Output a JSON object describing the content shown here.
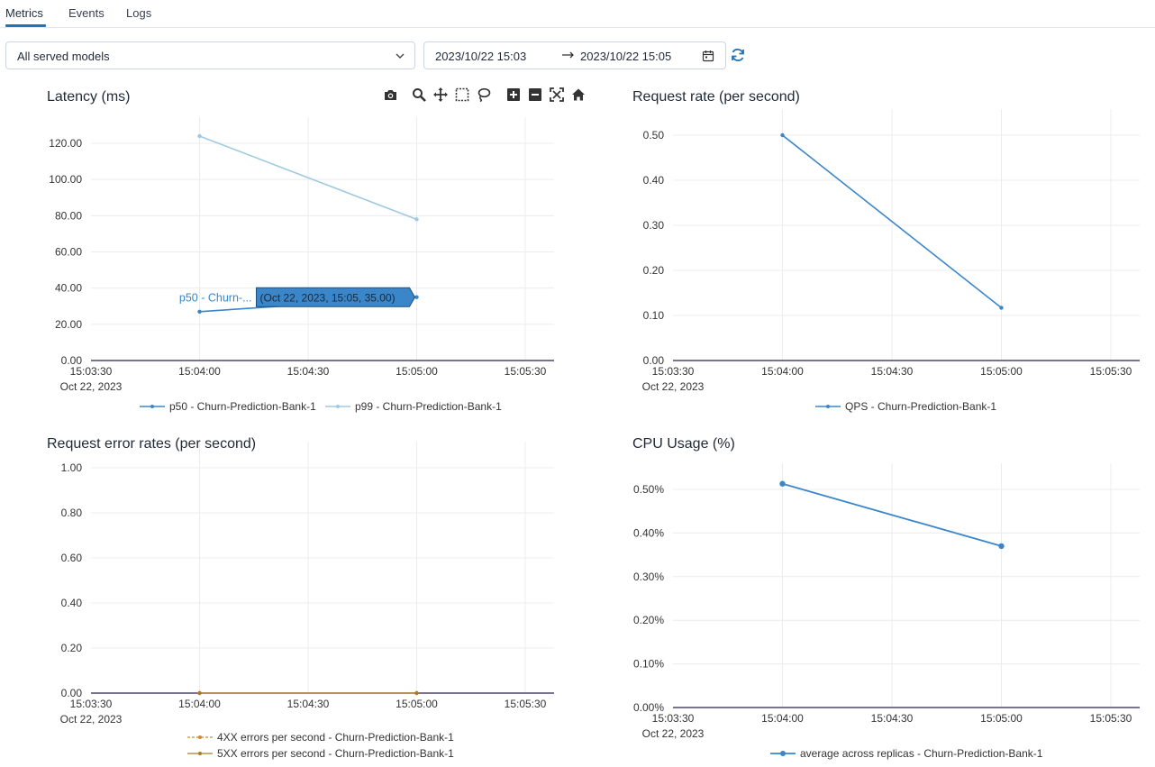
{
  "tabs": [
    {
      "label": "Metrics",
      "active": true
    },
    {
      "label": "Events",
      "active": false
    },
    {
      "label": "Logs",
      "active": false
    }
  ],
  "filters": {
    "model_select": "All served models",
    "date_from": "2023/10/22 15:03",
    "date_to": "2023/10/22 15:05"
  },
  "colors": {
    "accent": "#2272b4",
    "series_dark": "#3a86c8",
    "series_light": "#9ecae1",
    "series_orange": "#d08a2a",
    "series_gold": "#a87d28"
  },
  "modebar_icons": [
    "camera-icon",
    "zoom-icon",
    "pan-icon",
    "box-select-icon",
    "lasso-icon",
    "zoom-in-icon",
    "zoom-out-icon",
    "autoscale-icon",
    "reset-axes-icon"
  ],
  "hover": {
    "series_label": "p50 - Churn-...",
    "value_label": "(Oct 22, 2023, 15:05, 35.00)"
  },
  "chart_data": [
    {
      "id": "latency",
      "type": "line",
      "title": "Latency (ms)",
      "x_ticks": [
        "15:03:30",
        "15:04:00",
        "15:04:30",
        "15:05:00",
        "15:05:30"
      ],
      "x_date_label": "Oct 22, 2023",
      "x": [
        "15:04:00",
        "15:05:00"
      ],
      "ylim": [
        0,
        130
      ],
      "y_ticks": [
        "0.00",
        "20.00",
        "40.00",
        "60.00",
        "80.00",
        "100.00",
        "120.00"
      ],
      "series": [
        {
          "name": "p50 - Churn-Prediction-Bank-1",
          "values": [
            27,
            35
          ]
        },
        {
          "name": "p99 - Churn-Prediction-Bank-1",
          "values": [
            124,
            78
          ]
        }
      ]
    },
    {
      "id": "request_rate",
      "type": "line",
      "title": "Request rate (per second)",
      "x_ticks": [
        "15:03:30",
        "15:04:00",
        "15:04:30",
        "15:05:00",
        "15:05:30"
      ],
      "x_date_label": "Oct 22, 2023",
      "x": [
        "15:04:00",
        "15:05:00"
      ],
      "ylim": [
        0,
        0.52
      ],
      "y_ticks": [
        "0.00",
        "0.10",
        "0.20",
        "0.30",
        "0.40",
        "0.50"
      ],
      "series": [
        {
          "name": "QPS - Churn-Prediction-Bank-1",
          "values": [
            0.5,
            0.117
          ]
        }
      ]
    },
    {
      "id": "error_rates",
      "type": "line",
      "title": "Request error rates (per second)",
      "x_ticks": [
        "15:03:30",
        "15:04:00",
        "15:04:30",
        "15:05:00",
        "15:05:30"
      ],
      "x_date_label": "Oct 22, 2023",
      "x": [
        "15:04:00",
        "15:05:00"
      ],
      "ylim": [
        0,
        1
      ],
      "y_ticks": [
        "0.00",
        "0.20",
        "0.40",
        "0.60",
        "0.80",
        "1.00"
      ],
      "series": [
        {
          "name": "4XX errors per second - Churn-Prediction-Bank-1",
          "values": [
            0,
            0
          ]
        },
        {
          "name": "5XX errors per second - Churn-Prediction-Bank-1",
          "values": [
            0,
            0
          ]
        }
      ]
    },
    {
      "id": "cpu_usage",
      "type": "line",
      "title": "CPU Usage (%)",
      "x_ticks": [
        "15:03:30",
        "15:04:00",
        "15:04:30",
        "15:05:00",
        "15:05:30"
      ],
      "x_date_label": "Oct 22, 2023",
      "x": [
        "15:04:00",
        "15:05:00"
      ],
      "ylim": [
        0,
        0.6
      ],
      "y_ticks": [
        "0.00%",
        "0.10%",
        "0.20%",
        "0.30%",
        "0.40%",
        "0.50%"
      ],
      "series": [
        {
          "name": "average across replicas - Churn-Prediction-Bank-1",
          "values": [
            0.513,
            0.37
          ]
        }
      ]
    }
  ]
}
